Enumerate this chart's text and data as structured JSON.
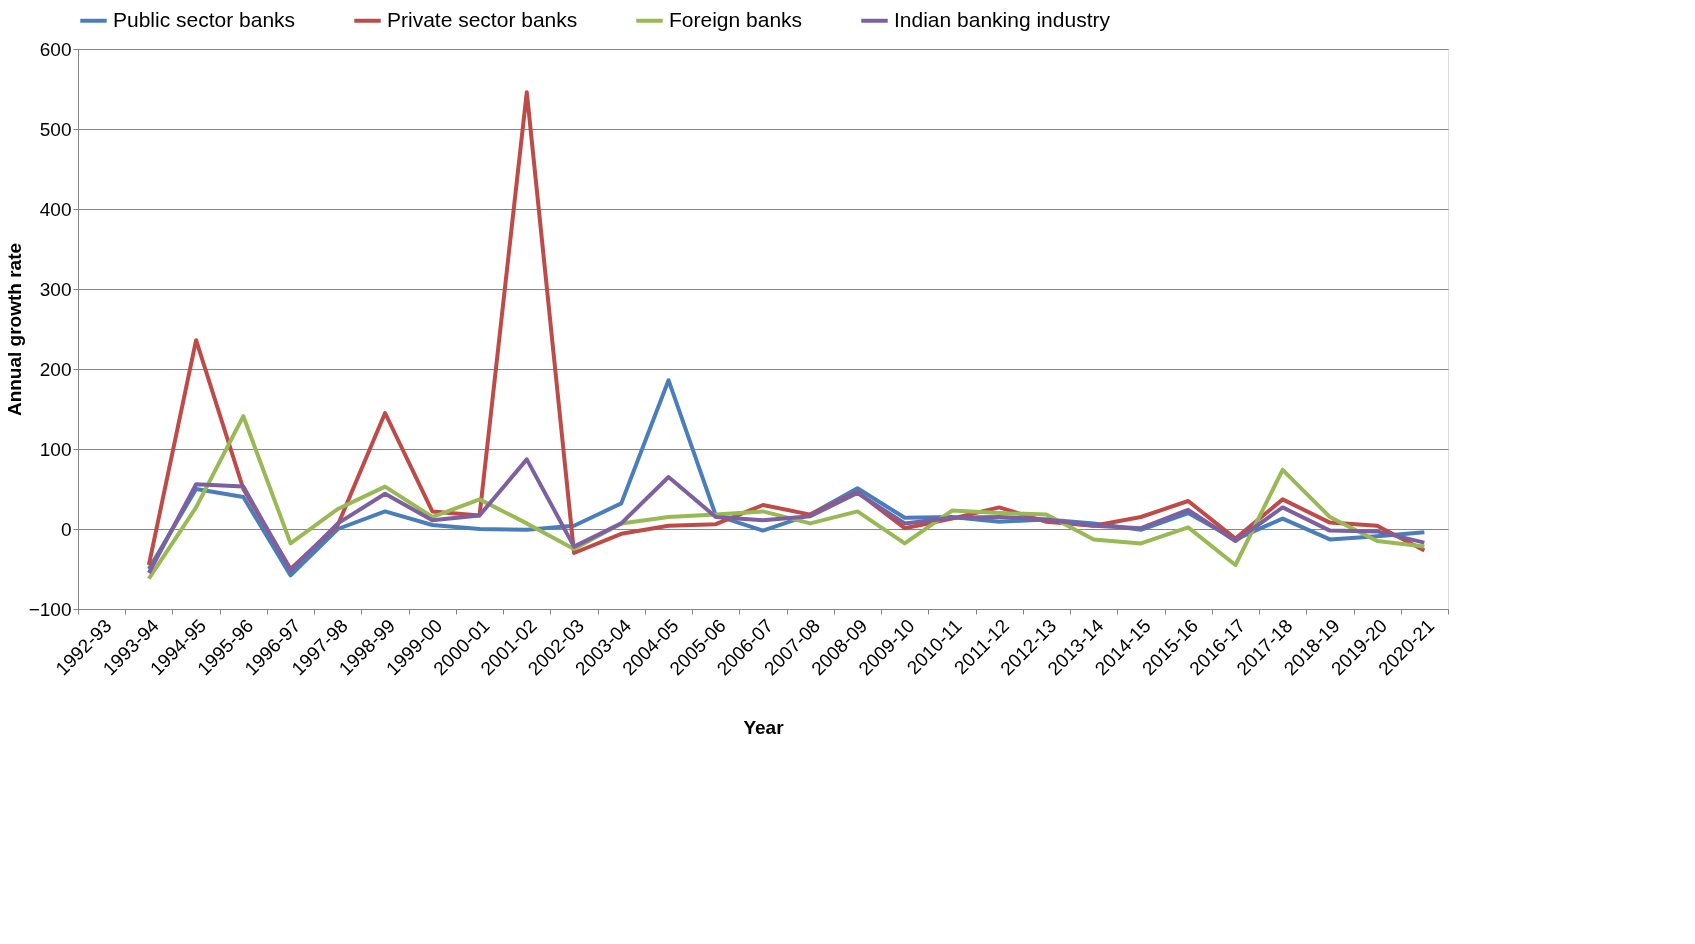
{
  "chart_data": {
    "type": "line",
    "xlabel": "Year",
    "ylabel": "Annual growth rate",
    "categories": [
      "1992-93",
      "1993-94",
      "1994-95",
      "1995-96",
      "1996-97",
      "1997-98",
      "1998-99",
      "1999-00",
      "2000-01",
      "2001-02",
      "2002-03",
      "2003-04",
      "2004-05",
      "2005-06",
      "2006-07",
      "2007-08",
      "2008-09",
      "2009-10",
      "2010-11",
      "2011-12",
      "2012-13",
      "2013-14",
      "2014-15",
      "2015-16",
      "2016-17",
      "2017-18",
      "2018-19",
      "2019-20",
      "2020-21"
    ],
    "series": [
      {
        "name": "Public sector banks",
        "color": "#4a7ebb",
        "values": [
          null,
          -50,
          50,
          40,
          -58,
          0,
          22,
          5,
          0,
          -1,
          4,
          32,
          186,
          17,
          -2,
          18,
          51,
          14,
          15,
          9,
          12,
          7,
          -1,
          20,
          -13,
          13,
          -13,
          -9,
          -4
        ]
      },
      {
        "name": "Private sector banks",
        "color": "#be4b48",
        "values": [
          null,
          -45,
          236,
          50,
          -50,
          5,
          145,
          22,
          17,
          546,
          -30,
          -6,
          4,
          6,
          30,
          18,
          46,
          1,
          13,
          27,
          9,
          4,
          15,
          35,
          -12,
          37,
          8,
          4,
          -27
        ]
      },
      {
        "name": "Foreign banks",
        "color": "#98b954",
        "values": [
          null,
          -62,
          27,
          141,
          -18,
          25,
          53,
          15,
          37,
          7,
          -25,
          7,
          15,
          18,
          22,
          7,
          22,
          -18,
          23,
          20,
          18,
          -13,
          -18,
          2,
          -45,
          74,
          15,
          -15,
          -22
        ]
      },
      {
        "name": "Indian banking industry",
        "color": "#7d60a0",
        "values": [
          null,
          -55,
          56,
          53,
          -52,
          7,
          44,
          11,
          17,
          87,
          -22,
          7,
          65,
          15,
          11,
          16,
          45,
          7,
          14,
          15,
          12,
          4,
          1,
          24,
          -15,
          27,
          -2,
          -3,
          -17
        ]
      }
    ],
    "ylim": [
      -100,
      600
    ],
    "yticks": [
      -100,
      0,
      100,
      200,
      300,
      400,
      500,
      600
    ],
    "grid": "y",
    "legend": "top",
    "marker": "none",
    "line_style": "solid"
  }
}
